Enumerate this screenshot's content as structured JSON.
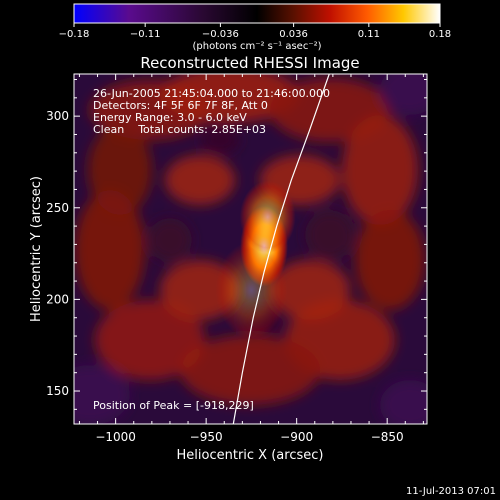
{
  "chart_data": {
    "type": "heatmap",
    "title": "Reconstructed RHESSI Image",
    "xlabel": "Heliocentric X (arcsec)",
    "ylabel": "Heliocentric Y (arcsec)",
    "xlim": [
      -1023,
      -828
    ],
    "ylim": [
      132,
      323
    ],
    "x_ticks": [
      -1000,
      -950,
      -900,
      -850
    ],
    "x_tick_labels": [
      "−1000",
      "−950",
      "−900",
      "−850"
    ],
    "y_ticks": [
      150,
      200,
      250,
      300
    ],
    "y_tick_labels": [
      "150",
      "200",
      "250",
      "300"
    ],
    "colorbar": {
      "range": [
        -0.18,
        0.18
      ],
      "ticks": [
        -0.18,
        -0.11,
        -0.036,
        0.036,
        0.11,
        0.18
      ],
      "tick_labels": [
        "−0.18",
        "−0.11",
        "−0.036",
        "0.036",
        "0.11",
        "0.18"
      ],
      "unit_label": "(photons cm⁻² s⁻¹ asec⁻²)",
      "colors": [
        "#0000ff",
        "#5a0b8e",
        "#2a0833",
        "#000000",
        "#5a1000",
        "#c01000",
        "#ff5a00",
        "#ffc800",
        "#ffffff"
      ]
    },
    "annotations": [
      "26-Jun-2005 21:45:04.000 to 21:46:00.000",
      "Detectors: 4F 5F 6F 7F 8F, Att 0",
      "Energy Range: 3.0 - 6.0 keV",
      "Clean    Total counts: 2.85E+03"
    ],
    "peak_label": "Position of Peak = [-918,229]",
    "peak": [
      -918,
      229
    ],
    "limb_curve": [
      [
        -935,
        132
      ],
      [
        -930,
        160
      ],
      [
        -924,
        190
      ],
      [
        -918,
        215
      ],
      [
        -911,
        240
      ],
      [
        -903,
        265
      ],
      [
        -893,
        292
      ],
      [
        -882,
        323
      ]
    ],
    "sources": [
      {
        "x": -918,
        "y": 229,
        "peak": 0.18,
        "sigma_x": 6,
        "sigma_y": 10
      },
      {
        "x": -916,
        "y": 245,
        "peak": 0.09,
        "sigma_x": 7,
        "sigma_y": 9
      },
      {
        "x": -925,
        "y": 205,
        "peak": 0.05,
        "sigma_x": 9,
        "sigma_y": 12
      }
    ],
    "grid": false,
    "footer_date": "11-Jul-2013 07:01"
  }
}
